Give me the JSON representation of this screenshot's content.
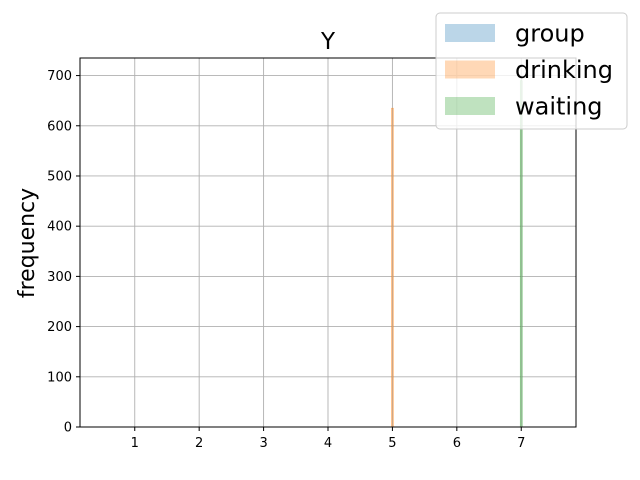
{
  "chart_data": {
    "type": "bar",
    "title": "Y",
    "xlabel": "",
    "ylabel": "frequency",
    "xlim": [
      0.15,
      7.85
    ],
    "ylim": [
      0,
      735
    ],
    "xticks": [
      "1",
      "2",
      "3",
      "4",
      "5",
      "6",
      "7"
    ],
    "yticks": [
      "0",
      "100",
      "200",
      "300",
      "400",
      "500",
      "600",
      "700"
    ],
    "grid": true,
    "legend_position": "top-right",
    "series": [
      {
        "name": "group",
        "color": "#1f77b4",
        "alpha": 0.3,
        "x": [],
        "values": []
      },
      {
        "name": "drinking",
        "color": "#ff7f0e",
        "alpha": 0.3,
        "x": [
          5
        ],
        "values": [
          635
        ]
      },
      {
        "name": "waiting",
        "color": "#2ca02c",
        "alpha": 0.3,
        "x": [
          7
        ],
        "values": [
          690
        ]
      }
    ]
  }
}
